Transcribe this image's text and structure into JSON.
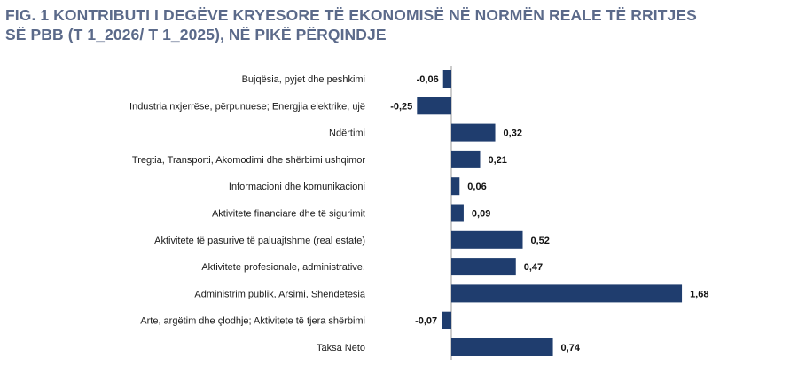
{
  "title": {
    "line1": "FIG. 1 KONTRIBUTI I DEGËVE KRYESORE TË EKONOMISË NË NORMËN REALE TË RRITJES",
    "line2": "SË PBB (T 1_2026/ T 1_2025), NË PIKË PËRQINDJE"
  },
  "colors": {
    "bar": "#1f3d6e",
    "title": "#5b6a8a",
    "axis": "#9a9a9a"
  },
  "chart_data": {
    "type": "bar",
    "orientation": "horizontal",
    "categories": [
      "Bujqësia, pyjet dhe peshkimi",
      "Industria nxjerrëse, përpunuese; Energjia elektrike, ujë",
      "Ndërtimi",
      "Tregtia, Transporti, Akomodimi dhe shërbimi ushqimor",
      "Informacioni dhe komunikacioni",
      "Aktivitete financiare dhe të sigurimit",
      "Aktivitete të pasurive të paluajtshme (real estate)",
      "Aktivitete profesionale, administrative.",
      "Administrim publik, Arsimi, Shëndetësia",
      "Arte, argëtim dhe çlodhje; Aktivitete të tjera shërbimi",
      "Taksa Neto"
    ],
    "values": [
      -0.06,
      -0.25,
      0.32,
      0.21,
      0.06,
      0.09,
      0.52,
      0.47,
      1.68,
      -0.07,
      0.74
    ],
    "value_labels": [
      "-0,06",
      "-0,25",
      "0,32",
      "0,21",
      "0,06",
      "0,09",
      "0,52",
      "0,47",
      "1,68",
      "-0,07",
      "0,74"
    ],
    "xlabel": "",
    "ylabel": "",
    "grid": false,
    "legend": "none"
  }
}
